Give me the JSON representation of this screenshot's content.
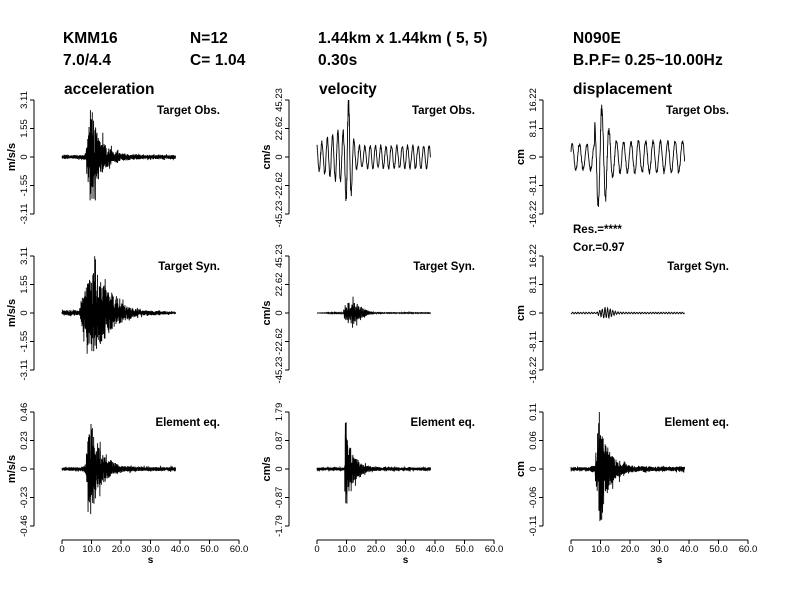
{
  "header": {
    "station": "KMM16",
    "n": "N=12",
    "grid": "1.44km x 1.44km  ( 5, 5)",
    "component": "N090E",
    "magnitudes": "7.0/4.4",
    "c": "C= 1.04",
    "rise": "0.30s",
    "bpf": "B.P.F= 0.25~10.00Hz"
  },
  "stats": {
    "res": "Res.=****",
    "cor": "Cor.=0.97"
  },
  "chart_data": [
    {
      "type": "line",
      "title": "acceleration",
      "row_label": "Target Obs.",
      "ylabel": "m/s/s",
      "yticks": [
        "-3.11",
        "-1.55",
        "0",
        "1.55",
        "3.11"
      ],
      "ylim": [
        -3.11,
        3.11
      ],
      "xlim": [
        0,
        60
      ],
      "envelope": "accel",
      "amp": 0.98,
      "freq": 4.5
    },
    {
      "type": "line",
      "title": "velocity",
      "row_label": "Target Obs.",
      "ylabel": "cm/s",
      "yticks": [
        "-45.23",
        "-22.62",
        "0",
        "22.62",
        "45.23"
      ],
      "ylim": [
        -45.23,
        45.23
      ],
      "xlim": [
        0,
        60
      ],
      "envelope": "vel_obs",
      "amp": 0.98,
      "freq": 0.55
    },
    {
      "type": "line",
      "title": "displacement",
      "row_label": "Target Obs.",
      "ylabel": "cm",
      "yticks": [
        "-16.22",
        "-8.11",
        "0",
        "8.11",
        "16.22"
      ],
      "ylim": [
        -16.22,
        16.22
      ],
      "xlim": [
        0,
        60
      ],
      "envelope": "disp_obs",
      "amp": 0.9,
      "freq": 0.4
    },
    {
      "type": "line",
      "row_label": "Target Syn.",
      "ylabel": "m/s/s",
      "yticks": [
        "-3.11",
        "-1.55",
        "0",
        "1.55",
        "3.11"
      ],
      "ylim": [
        -3.11,
        3.11
      ],
      "xlim": [
        0,
        60
      ],
      "envelope": "accel_syn",
      "amp": 0.78,
      "freq": 4.5
    },
    {
      "type": "line",
      "row_label": "Target Syn.",
      "ylabel": "cm/s",
      "yticks": [
        "-45.23",
        "-22.62",
        "0",
        "22.62",
        "45.23"
      ],
      "ylim": [
        -45.23,
        45.23
      ],
      "xlim": [
        0,
        60
      ],
      "envelope": "vel_syn",
      "amp": 0.2,
      "freq": 2.2
    },
    {
      "type": "line",
      "row_label": "Target Syn.",
      "ylabel": "cm",
      "yticks": [
        "-16.22",
        "-8.11",
        "0",
        "8.11",
        "16.22"
      ],
      "ylim": [
        -16.22,
        16.22
      ],
      "xlim": [
        0,
        60
      ],
      "envelope": "disp_syn",
      "amp": 0.09,
      "freq": 1.1
    },
    {
      "type": "line",
      "row_label": "Element eq.",
      "ylabel": "m/s/s",
      "yticks": [
        "-0.46",
        "-0.23",
        "0",
        "0.23",
        "0.46"
      ],
      "ylim": [
        -0.46,
        0.46
      ],
      "xlim": [
        0,
        60
      ],
      "envelope": "accel",
      "amp": 0.95,
      "freq": 4.5,
      "xticks": [
        "0",
        "10.0",
        "20.0",
        "30.0",
        "40.0",
        "50.0",
        "60.0"
      ],
      "xlabel": "s"
    },
    {
      "type": "line",
      "row_label": "Element eq.",
      "ylabel": "cm/s",
      "yticks": [
        "-1.79",
        "-0.87",
        "0",
        "0.87",
        "1.79"
      ],
      "ylim": [
        -1.79,
        1.79
      ],
      "xlim": [
        0,
        60
      ],
      "envelope": "vel_elem",
      "amp": 0.98,
      "freq": 2.8,
      "xticks": [
        "0",
        "10.0",
        "20.0",
        "30.0",
        "40.0",
        "50.0",
        "60.0"
      ],
      "xlabel": "s"
    },
    {
      "type": "line",
      "row_label": "Element eq.",
      "ylabel": "cm",
      "yticks": [
        "-0.11",
        "-0.06",
        "0",
        "0.06",
        "0.11"
      ],
      "ylim": [
        -0.11,
        0.11
      ],
      "xlim": [
        0,
        60
      ],
      "envelope": "accel",
      "amp": 0.98,
      "freq": 3.2,
      "xticks": [
        "0",
        "10.0",
        "20.0",
        "30.0",
        "40.0",
        "50.0",
        "60.0"
      ],
      "xlabel": "s"
    }
  ]
}
